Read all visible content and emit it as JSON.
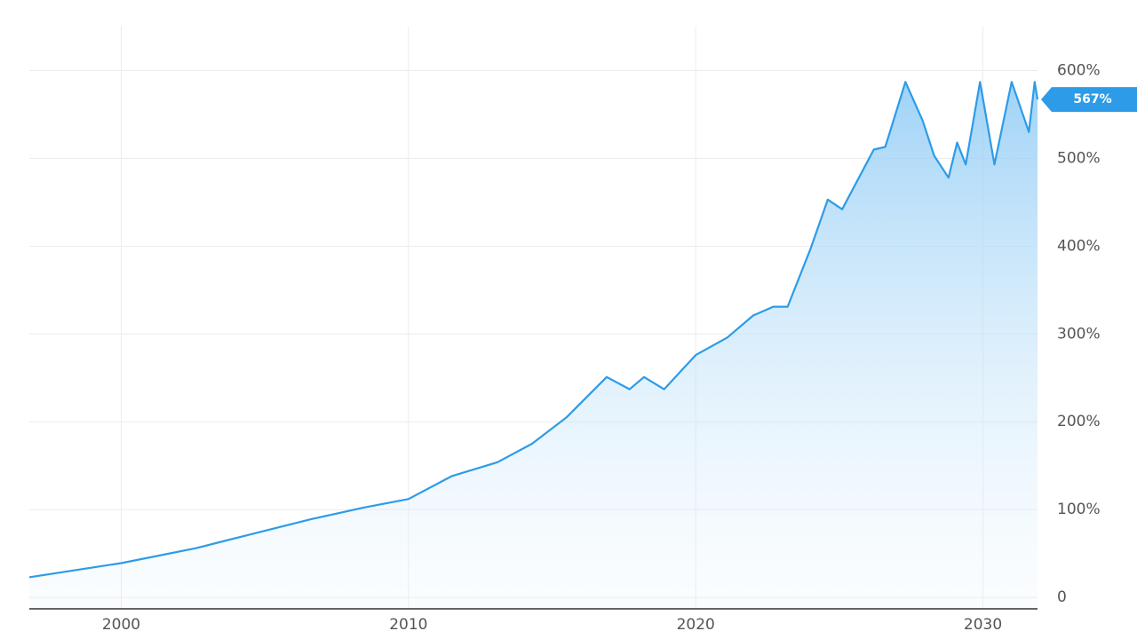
{
  "chart_data": {
    "type": "area",
    "x": [
      1996.8,
      2000,
      2002.6,
      2004.4,
      2006.6,
      2008.4,
      2010,
      2011.5,
      2013.1,
      2014.3,
      2015.5,
      2016.9,
      2017.7,
      2018.2,
      2018.9,
      2020,
      2021.1,
      2022,
      2022.7,
      2023.2,
      2024,
      2024.6,
      2025.1,
      2026.2,
      2026.6,
      2027.3,
      2027.9,
      2028.3,
      2028.8,
      2029.1,
      2029.4,
      2029.9,
      2030.4,
      2031,
      2031.6,
      2031.8,
      2031.9
    ],
    "series": [
      {
        "color": "#2d9be8",
        "values": [
          23,
          39,
          56,
          71,
          89,
          102,
          112,
          138,
          154,
          175,
          205,
          251,
          237,
          251,
          237,
          276,
          296,
          321,
          331,
          331,
          397,
          453,
          442,
          510,
          513,
          587,
          543,
          503,
          478,
          518,
          493,
          587,
          493,
          587,
          530,
          587,
          567
        ]
      }
    ],
    "xlim": [
      1996.8,
      2031.9
    ],
    "xticks": [
      2000,
      2010,
      2020,
      2030
    ],
    "ylim": [
      -13,
      650
    ],
    "yticks": [
      {
        "value": 0,
        "label": "0"
      },
      {
        "value": 100,
        "label": "100%"
      },
      {
        "value": 200,
        "label": "200%"
      },
      {
        "value": 300,
        "label": "300%"
      },
      {
        "value": 400,
        "label": "400%"
      },
      {
        "value": 500,
        "label": "500%"
      },
      {
        "value": 600,
        "label": "600%"
      }
    ],
    "current_value": 567,
    "current_label": "567%",
    "grid": true
  }
}
